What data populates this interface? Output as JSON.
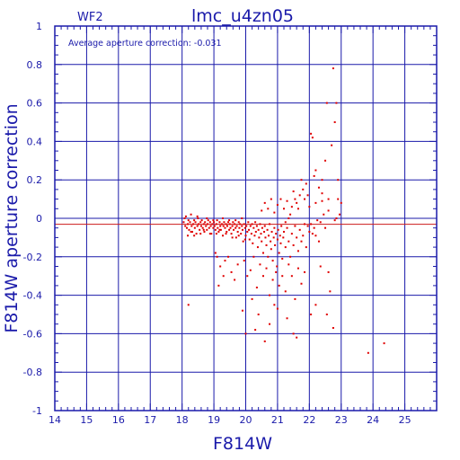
{
  "chart_data": {
    "type": "scatter",
    "title": "lmc_u4zn05",
    "panel_label": "WF2",
    "annotation": "Average aperture correction: -0.031",
    "xlabel": "F814W",
    "ylabel": "F814W aperture correction",
    "xlim": [
      14,
      26
    ],
    "ylim": [
      -1,
      1
    ],
    "x_ticks": [
      14,
      15,
      16,
      17,
      18,
      19,
      20,
      21,
      22,
      23,
      24,
      25
    ],
    "y_ticks": [
      -1,
      -0.8,
      -0.6,
      -0.4,
      -0.2,
      0,
      0.2,
      0.4,
      0.6,
      0.8,
      1
    ],
    "grid": true,
    "reference_lines": [
      {
        "y": 0,
        "color": "#1a1aaa"
      },
      {
        "y": -0.031,
        "color": "#cc1a1a"
      }
    ],
    "colors": {
      "axes": "#1a1aaa",
      "points": "#e00000",
      "background": "#ffffff"
    },
    "series": [
      {
        "values": [
          [
            18.05,
            -0.02
          ],
          [
            18.1,
            -0.04
          ],
          [
            18.12,
            0.01
          ],
          [
            18.15,
            -0.05
          ],
          [
            18.18,
            -0.03
          ],
          [
            18.2,
            -0.01
          ],
          [
            18.22,
            -0.06
          ],
          [
            18.25,
            -0.02
          ],
          [
            18.28,
            0.02
          ],
          [
            18.3,
            -0.04
          ],
          [
            18.32,
            -0.07
          ],
          [
            18.35,
            -0.03
          ],
          [
            18.38,
            -0.01
          ],
          [
            18.4,
            -0.05
          ],
          [
            18.42,
            -0.02
          ],
          [
            18.45,
            -0.08
          ],
          [
            18.48,
            -0.04
          ],
          [
            18.5,
            0.0
          ],
          [
            18.52,
            -0.03
          ],
          [
            18.55,
            -0.06
          ],
          [
            18.58,
            -0.02
          ],
          [
            18.6,
            -0.04
          ],
          [
            18.62,
            -0.01
          ],
          [
            18.65,
            -0.05
          ],
          [
            18.68,
            -0.03
          ],
          [
            18.7,
            -0.07
          ],
          [
            18.72,
            -0.02
          ],
          [
            18.75,
            -0.04
          ],
          [
            18.78,
            -0.06
          ],
          [
            18.8,
            -0.03
          ],
          [
            18.82,
            -0.01
          ],
          [
            18.85,
            -0.05
          ],
          [
            18.88,
            -0.02
          ],
          [
            18.9,
            -0.04
          ],
          [
            18.92,
            -0.08
          ],
          [
            18.95,
            -0.03
          ],
          [
            18.98,
            -0.05
          ],
          [
            19.0,
            -0.02
          ],
          [
            19.02,
            -0.04
          ],
          [
            19.05,
            -0.06
          ],
          [
            19.08,
            -0.03
          ],
          [
            19.1,
            -0.01
          ],
          [
            19.12,
            -0.05
          ],
          [
            19.15,
            -0.07
          ],
          [
            19.18,
            -0.02
          ],
          [
            19.2,
            -0.04
          ],
          [
            19.22,
            -0.06
          ],
          [
            19.25,
            -0.03
          ],
          [
            19.28,
            -0.09
          ],
          [
            19.3,
            -0.04
          ],
          [
            19.32,
            -0.02
          ],
          [
            19.35,
            -0.05
          ],
          [
            19.38,
            -0.03
          ],
          [
            19.4,
            -0.07
          ],
          [
            19.42,
            -0.04
          ],
          [
            19.45,
            -0.02
          ],
          [
            19.48,
            -0.06
          ],
          [
            19.5,
            -0.03
          ],
          [
            19.52,
            -0.05
          ],
          [
            19.55,
            -0.08
          ],
          [
            19.58,
            -0.04
          ],
          [
            19.6,
            -0.02
          ],
          [
            19.62,
            -0.06
          ],
          [
            19.65,
            -0.03
          ],
          [
            19.68,
            -0.05
          ],
          [
            19.7,
            -0.1
          ],
          [
            19.72,
            -0.04
          ],
          [
            19.75,
            -0.07
          ],
          [
            19.78,
            -0.02
          ],
          [
            19.8,
            -0.05
          ],
          [
            19.82,
            -0.03
          ],
          [
            19.85,
            -0.08
          ],
          [
            19.88,
            -0.04
          ],
          [
            19.9,
            -0.06
          ],
          [
            19.92,
            -0.12
          ],
          [
            19.95,
            -0.03
          ],
          [
            19.98,
            -0.05
          ],
          [
            20.0,
            -0.09
          ],
          [
            20.02,
            -0.04
          ],
          [
            20.05,
            -0.07
          ],
          [
            20.08,
            -0.02
          ],
          [
            20.1,
            -0.06
          ],
          [
            20.12,
            -0.11
          ],
          [
            20.15,
            -0.04
          ],
          [
            20.18,
            -0.08
          ],
          [
            20.2,
            -0.03
          ],
          [
            20.22,
            -0.13
          ],
          [
            20.25,
            -0.05
          ],
          [
            20.28,
            -0.09
          ],
          [
            20.3,
            -0.02
          ],
          [
            20.32,
            -0.07
          ],
          [
            20.35,
            -0.04
          ],
          [
            20.38,
            -0.15
          ],
          [
            20.4,
            -0.06
          ],
          [
            20.42,
            -0.1
          ],
          [
            20.45,
            -0.03
          ],
          [
            20.48,
            -0.08
          ],
          [
            20.5,
            -0.12
          ],
          [
            20.52,
            -0.05
          ],
          [
            20.55,
            -0.18
          ],
          [
            20.58,
            -0.07
          ],
          [
            20.6,
            -0.04
          ],
          [
            20.62,
            -0.1
          ],
          [
            20.65,
            -0.14
          ],
          [
            20.68,
            -0.06
          ],
          [
            20.7,
            -0.2
          ],
          [
            20.72,
            -0.09
          ],
          [
            20.75,
            -0.03
          ],
          [
            20.78,
            -0.12
          ],
          [
            20.8,
            -0.16
          ],
          [
            20.82,
            -0.07
          ],
          [
            20.85,
            -0.22
          ],
          [
            20.88,
            -0.1
          ],
          [
            20.9,
            -0.05
          ],
          [
            20.92,
            -0.14
          ],
          [
            20.95,
            -0.08
          ],
          [
            20.98,
            -0.25
          ],
          [
            21.0,
            -0.11
          ],
          [
            21.02,
            -0.06
          ],
          [
            21.05,
            -0.18
          ],
          [
            21.08,
            -0.09
          ],
          [
            21.1,
            -0.13
          ],
          [
            21.12,
            -0.04
          ],
          [
            21.15,
            -0.21
          ],
          [
            21.18,
            -0.1
          ],
          [
            21.2,
            -0.07
          ],
          [
            21.25,
            -0.15
          ],
          [
            21.3,
            -0.05
          ],
          [
            21.35,
            -0.12
          ],
          [
            21.4,
            -0.2
          ],
          [
            21.45,
            -0.08
          ],
          [
            21.5,
            -0.14
          ],
          [
            21.55,
            -0.04
          ],
          [
            21.6,
            -0.1
          ],
          [
            21.65,
            -0.17
          ],
          [
            21.7,
            -0.06
          ],
          [
            21.75,
            -0.12
          ],
          [
            21.8,
            -0.09
          ],
          [
            21.85,
            -0.03
          ],
          [
            21.9,
            -0.15
          ],
          [
            18.08,
            0.0
          ],
          [
            18.18,
            -0.09
          ],
          [
            18.28,
            -0.07
          ],
          [
            18.38,
            -0.09
          ],
          [
            18.48,
            0.01
          ],
          [
            18.58,
            -0.08
          ],
          [
            18.68,
            -0.06
          ],
          [
            18.78,
            0.0
          ],
          [
            18.88,
            -0.08
          ],
          [
            18.98,
            -0.01
          ],
          [
            19.08,
            -0.08
          ],
          [
            19.18,
            -0.06
          ],
          [
            19.28,
            0.0
          ],
          [
            19.38,
            -0.08
          ],
          [
            19.48,
            -0.01
          ],
          [
            19.58,
            -0.1
          ],
          [
            19.68,
            -0.01
          ],
          [
            19.78,
            -0.09
          ],
          [
            19.88,
            0.0
          ],
          [
            19.98,
            -0.11
          ],
          [
            19.1,
            -0.2
          ],
          [
            19.2,
            -0.25
          ],
          [
            19.3,
            -0.3
          ],
          [
            19.05,
            -0.18
          ],
          [
            19.15,
            -0.35
          ],
          [
            19.35,
            -0.22
          ],
          [
            19.55,
            -0.28
          ],
          [
            19.75,
            -0.24
          ],
          [
            19.65,
            -0.32
          ],
          [
            19.45,
            -0.2
          ],
          [
            19.95,
            -0.22
          ],
          [
            20.05,
            -0.3
          ],
          [
            20.15,
            -0.27
          ],
          [
            20.25,
            -0.2
          ],
          [
            20.35,
            -0.36
          ],
          [
            20.45,
            -0.24
          ],
          [
            20.55,
            -0.3
          ],
          [
            20.65,
            -0.26
          ],
          [
            20.75,
            -0.4
          ],
          [
            20.85,
            -0.32
          ],
          [
            20.95,
            -0.28
          ],
          [
            21.05,
            -0.35
          ],
          [
            21.15,
            -0.3
          ],
          [
            21.25,
            -0.38
          ],
          [
            21.35,
            -0.24
          ],
          [
            21.45,
            -0.3
          ],
          [
            21.55,
            -0.42
          ],
          [
            21.65,
            -0.26
          ],
          [
            21.75,
            -0.34
          ],
          [
            21.85,
            -0.28
          ],
          [
            19.9,
            -0.48
          ],
          [
            20.4,
            -0.5
          ],
          [
            20.6,
            -0.64
          ],
          [
            20.9,
            -0.45
          ],
          [
            21.3,
            -0.52
          ],
          [
            21.0,
            -0.47
          ],
          [
            21.5,
            -0.6
          ],
          [
            20.2,
            -0.42
          ],
          [
            20.75,
            -0.55
          ],
          [
            20.3,
            -0.58
          ],
          [
            18.2,
            -0.45
          ],
          [
            20.0,
            -0.6
          ],
          [
            21.6,
            -0.62
          ],
          [
            22.55,
            -0.5
          ],
          [
            22.75,
            -0.57
          ],
          [
            23.85,
            -0.7
          ],
          [
            24.35,
            -0.65
          ],
          [
            22.2,
            -0.45
          ],
          [
            22.05,
            -0.5
          ],
          [
            22.65,
            -0.38
          ],
          [
            20.5,
            0.04
          ],
          [
            20.6,
            0.08
          ],
          [
            20.7,
            0.05
          ],
          [
            20.8,
            0.1
          ],
          [
            20.9,
            0.03
          ],
          [
            21.0,
            0.07
          ],
          [
            21.1,
            0.1
          ],
          [
            21.2,
            0.05
          ],
          [
            21.3,
            0.09
          ],
          [
            21.4,
            0.02
          ],
          [
            21.5,
            0.14
          ],
          [
            21.6,
            0.08
          ],
          [
            21.7,
            0.12
          ],
          [
            21.75,
            0.2
          ],
          [
            21.8,
            0.15
          ],
          [
            21.85,
            0.1
          ],
          [
            21.9,
            0.18
          ],
          [
            21.95,
            0.12
          ],
          [
            22.0,
            0.06
          ],
          [
            22.05,
            0.44
          ],
          [
            22.1,
            0.42
          ],
          [
            22.15,
            0.22
          ],
          [
            22.2,
            0.25
          ],
          [
            22.3,
            0.16
          ],
          [
            22.4,
            0.09
          ],
          [
            22.5,
            0.3
          ],
          [
            22.55,
            0.6
          ],
          [
            22.7,
            0.38
          ],
          [
            22.8,
            0.5
          ],
          [
            22.75,
            0.78
          ],
          [
            22.85,
            0.6
          ],
          [
            22.9,
            0.1
          ],
          [
            22.95,
            0.02
          ],
          [
            22.85,
            0.0
          ],
          [
            22.8,
            -0.01
          ],
          [
            22.6,
            0.04
          ],
          [
            22.5,
            -0.05
          ],
          [
            22.45,
            0.02
          ],
          [
            22.4,
            0.13
          ],
          [
            22.35,
            -0.02
          ],
          [
            22.25,
            -0.01
          ],
          [
            22.15,
            -0.05
          ],
          [
            22.1,
            -0.08
          ],
          [
            22.05,
            -0.03
          ],
          [
            22.0,
            -0.07
          ],
          [
            21.95,
            -0.04
          ],
          [
            22.2,
            -0.09
          ],
          [
            22.3,
            -0.12
          ],
          [
            22.35,
            -0.25
          ],
          [
            22.6,
            -0.28
          ],
          [
            23.0,
            0.08
          ],
          [
            22.9,
            0.2
          ],
          [
            22.6,
            0.1
          ],
          [
            22.4,
            0.2
          ],
          [
            22.2,
            0.08
          ],
          [
            21.65,
            0.05
          ],
          [
            21.55,
            0.1
          ],
          [
            21.45,
            0.06
          ],
          [
            21.35,
            0.0
          ],
          [
            21.25,
            -0.02
          ]
        ]
      }
    ]
  }
}
